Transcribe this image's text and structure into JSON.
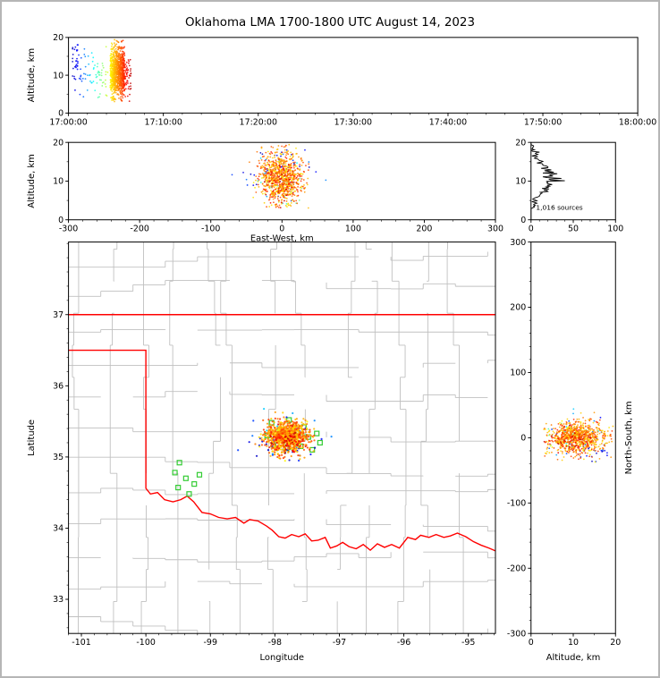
{
  "title": "Oklahoma LMA 1700-1800 UTC August 14, 2023",
  "chart_data": {
    "type": "scatter",
    "title": "Oklahoma LMA 1700-1800 UTC August 14, 2023",
    "colors": {
      "state_border": "#ff0000",
      "county": "#c0c0c0",
      "station": "#33cc33",
      "histogram": "#000000",
      "axis": "#000000"
    },
    "panels": {
      "time": {
        "ylabel": "Altitude, km",
        "xlim": [
          0,
          60
        ],
        "xticks": [
          0,
          10,
          20,
          30,
          40,
          50,
          60
        ],
        "xtick_labels": [
          "17:00:00",
          "17:10:00",
          "17:20:00",
          "17:30:00",
          "17:40:00",
          "17:50:00",
          "18:00:00"
        ],
        "ylim": [
          0,
          20
        ],
        "yticks": [
          0,
          10,
          20
        ],
        "minor_x": 2,
        "minor_y": 5
      },
      "ew": {
        "xlabel": "East-West, km",
        "ylabel": "Altitude, km",
        "xlim": [
          -300,
          300
        ],
        "xticks": [
          -300,
          -200,
          -100,
          0,
          100,
          200,
          300
        ],
        "ylim": [
          0,
          20
        ],
        "yticks": [
          0,
          10,
          20
        ],
        "minor_x": 20,
        "minor_y": 5
      },
      "hist": {
        "annotation": "1,016 sources",
        "xlim": [
          0,
          100
        ],
        "xticks": [
          0,
          50,
          100
        ],
        "ylim": [
          0,
          20
        ],
        "yticks": [
          0,
          10,
          20
        ],
        "minor_x": 10,
        "minor_y": 5,
        "bin_km": 0.2
      },
      "map": {
        "xlabel": "Longitude",
        "ylabel": "Latitude",
        "xlim": [
          -101.2,
          -94.58
        ],
        "xticks": [
          -101,
          -100,
          -99,
          -98,
          -97,
          -96,
          -95
        ],
        "ylim": [
          32.52,
          38.02
        ],
        "yticks": [
          33,
          34,
          35,
          36,
          37
        ],
        "minor_x": 0.2,
        "minor_y": 0.2
      },
      "ns": {
        "xlabel": "Altitude, km",
        "ylabel_right": "North-South, km",
        "xlim": [
          0,
          20
        ],
        "xticks": [
          0,
          10,
          20
        ],
        "ylim": [
          -300,
          300
        ],
        "yticks": [
          -300,
          -200,
          -100,
          0,
          100,
          200,
          300
        ],
        "minor_x": 5,
        "minor_y": 20
      }
    },
    "sources": {
      "seed": 20230814,
      "total": 1016,
      "center": {
        "lon": -97.8,
        "lat": 35.28
      },
      "time_window_min": [
        0,
        7
      ],
      "clusters": [
        {
          "count": 30,
          "t": [
            0.4,
            1.0
          ],
          "alt_mean": 12.5,
          "alt_sd": 3.5,
          "lon_mean": -97.95,
          "lon_sd": 0.3,
          "lat_mean": 35.22,
          "lat_sd": 0.13
        },
        {
          "count": 25,
          "t": [
            1.0,
            2.4
          ],
          "alt_mean": 11.0,
          "alt_sd": 3.5,
          "lon_mean": -97.85,
          "lon_sd": 0.25,
          "lat_mean": 35.25,
          "lat_sd": 0.12
        },
        {
          "count": 45,
          "t": [
            2.4,
            4.2
          ],
          "alt_mean": 10.5,
          "alt_sd": 3.0,
          "lon_mean": -97.8,
          "lon_sd": 0.2,
          "lat_mean": 35.3,
          "lat_sd": 0.1
        },
        {
          "count": 860,
          "t": [
            4.4,
            5.9
          ],
          "alt_mean": 11.0,
          "alt_sd": 3.2,
          "lon_mean": -97.82,
          "lon_sd": 0.17,
          "lat_mean": 35.28,
          "lat_sd": 0.11
        },
        {
          "count": 56,
          "t": [
            5.9,
            6.6
          ],
          "alt_mean": 9.5,
          "alt_sd": 2.8,
          "lon_mean": -97.78,
          "lon_sd": 0.15,
          "lat_mean": 35.24,
          "lat_sd": 0.1
        }
      ]
    },
    "stations": [
      [
        -98.05,
        35.48
      ],
      [
        -97.78,
        35.52
      ],
      [
        -97.55,
        35.42
      ],
      [
        -98.12,
        35.3
      ],
      [
        -97.92,
        35.33
      ],
      [
        -97.7,
        35.3
      ],
      [
        -97.48,
        35.28
      ],
      [
        -97.35,
        35.33
      ],
      [
        -98.02,
        35.17
      ],
      [
        -97.82,
        35.12
      ],
      [
        -97.6,
        35.15
      ],
      [
        -97.42,
        35.1
      ],
      [
        -97.3,
        35.2
      ],
      [
        -99.48,
        34.92
      ],
      [
        -99.55,
        34.78
      ],
      [
        -99.38,
        34.7
      ],
      [
        -99.25,
        34.62
      ],
      [
        -99.5,
        34.57
      ],
      [
        -99.33,
        34.48
      ],
      [
        -99.17,
        34.75
      ]
    ],
    "state_border": {
      "north_lat": 37.0,
      "panhandle_lat": 36.5,
      "west_lon": -100.0,
      "red_river": [
        [
          -100.0,
          34.56
        ],
        [
          -99.93,
          34.48
        ],
        [
          -99.82,
          34.5
        ],
        [
          -99.71,
          34.4
        ],
        [
          -99.58,
          34.37
        ],
        [
          -99.46,
          34.4
        ],
        [
          -99.36,
          34.45
        ],
        [
          -99.26,
          34.37
        ],
        [
          -99.13,
          34.22
        ],
        [
          -99.0,
          34.2
        ],
        [
          -98.87,
          34.15
        ],
        [
          -98.74,
          34.13
        ],
        [
          -98.61,
          34.15
        ],
        [
          -98.48,
          34.07
        ],
        [
          -98.39,
          34.12
        ],
        [
          -98.26,
          34.1
        ],
        [
          -98.13,
          34.03
        ],
        [
          -98.04,
          33.97
        ],
        [
          -97.94,
          33.88
        ],
        [
          -97.84,
          33.86
        ],
        [
          -97.74,
          33.91
        ],
        [
          -97.63,
          33.88
        ],
        [
          -97.53,
          33.92
        ],
        [
          -97.43,
          33.82
        ],
        [
          -97.33,
          33.83
        ],
        [
          -97.22,
          33.87
        ],
        [
          -97.14,
          33.72
        ],
        [
          -97.04,
          33.75
        ],
        [
          -96.95,
          33.8
        ],
        [
          -96.85,
          33.74
        ],
        [
          -96.74,
          33.71
        ],
        [
          -96.63,
          33.77
        ],
        [
          -96.52,
          33.69
        ],
        [
          -96.41,
          33.78
        ],
        [
          -96.3,
          33.73
        ],
        [
          -96.19,
          33.77
        ],
        [
          -96.07,
          33.72
        ],
        [
          -95.94,
          33.87
        ],
        [
          -95.82,
          33.84
        ],
        [
          -95.74,
          33.9
        ],
        [
          -95.61,
          33.87
        ],
        [
          -95.5,
          33.91
        ],
        [
          -95.38,
          33.87
        ],
        [
          -95.28,
          33.89
        ],
        [
          -95.17,
          33.93
        ],
        [
          -95.04,
          33.88
        ],
        [
          -94.92,
          33.81
        ],
        [
          -94.8,
          33.76
        ],
        [
          -94.68,
          33.72
        ],
        [
          -94.58,
          33.68
        ]
      ]
    },
    "counties": {
      "seed": 11,
      "cell": [
        0.5,
        0.45
      ]
    }
  }
}
